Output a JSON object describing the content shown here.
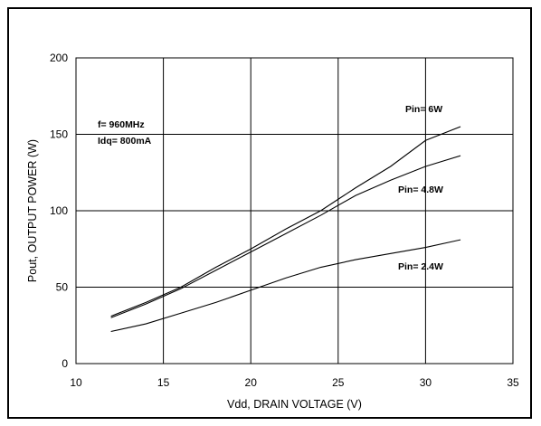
{
  "chart_data": {
    "type": "line",
    "xlabel": "Vdd, DRAIN VOLTAGE (V)",
    "ylabel": "Pout, OUTPUT POWER (W)",
    "xlim": [
      10,
      35
    ],
    "ylim": [
      0,
      200
    ],
    "x_ticks": [
      10,
      15,
      20,
      25,
      30,
      35
    ],
    "y_ticks": [
      0,
      50,
      100,
      150,
      200
    ],
    "grid": true,
    "conditions": [
      "f= 960MHz",
      "Idq= 800mA"
    ],
    "series": [
      {
        "name": "Pin= 6W",
        "x": [
          12,
          14,
          16,
          18,
          20,
          22,
          24,
          26,
          28,
          30,
          32
        ],
        "y": [
          31,
          40,
          50,
          63,
          75,
          88,
          100,
          115,
          129,
          146,
          155
        ]
      },
      {
        "name": "Pin= 4.8W",
        "x": [
          12,
          14,
          16,
          18,
          20,
          22,
          24,
          26,
          28,
          30,
          32
        ],
        "y": [
          30,
          39,
          49,
          61,
          73,
          85,
          97,
          110,
          120,
          129,
          136
        ]
      },
      {
        "name": "Pin= 2.4W",
        "x": [
          12,
          14,
          16,
          18,
          20,
          22,
          24,
          26,
          28,
          30,
          32
        ],
        "y": [
          21,
          26,
          33,
          40,
          48,
          56,
          63,
          68,
          72,
          76,
          81
        ]
      }
    ]
  }
}
